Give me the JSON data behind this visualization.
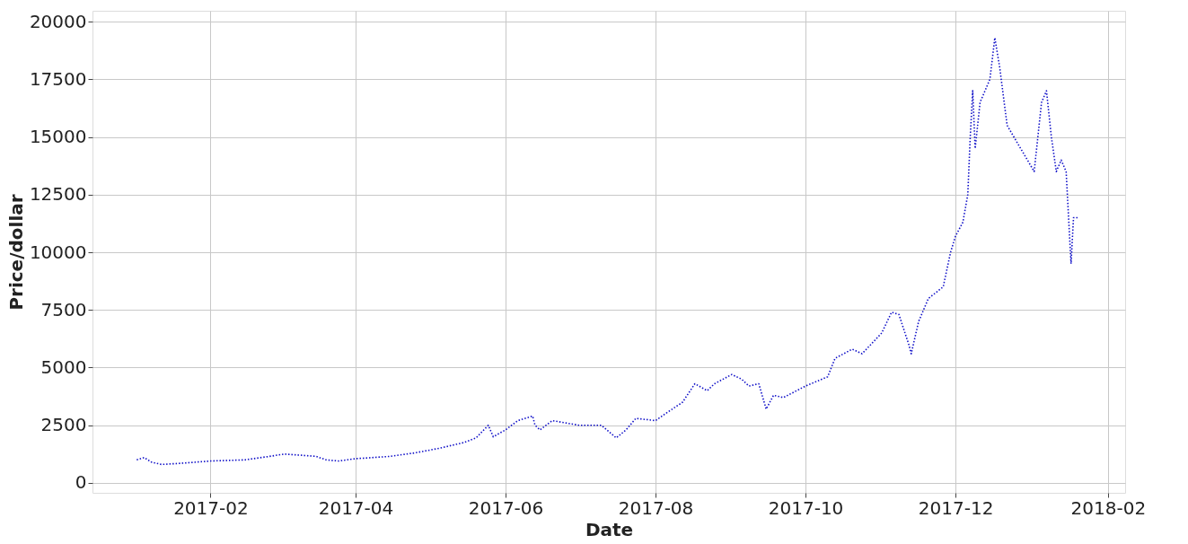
{
  "chart_data": {
    "type": "line",
    "xlabel": "Date",
    "ylabel": "Price/dollar",
    "x": [
      "2017-01-02",
      "2017-01-05",
      "2017-01-08",
      "2017-01-12",
      "2017-01-20",
      "2017-02-01",
      "2017-02-15",
      "2017-02-25",
      "2017-03-03",
      "2017-03-10",
      "2017-03-16",
      "2017-03-20",
      "2017-03-25",
      "2017-04-01",
      "2017-04-15",
      "2017-04-25",
      "2017-05-05",
      "2017-05-15",
      "2017-05-20",
      "2017-05-25",
      "2017-05-27",
      "2017-06-01",
      "2017-06-06",
      "2017-06-12",
      "2017-06-13",
      "2017-06-15",
      "2017-06-20",
      "2017-07-01",
      "2017-07-10",
      "2017-07-16",
      "2017-07-20",
      "2017-07-24",
      "2017-08-01",
      "2017-08-05",
      "2017-08-12",
      "2017-08-17",
      "2017-08-22",
      "2017-08-25",
      "2017-09-01",
      "2017-09-05",
      "2017-09-08",
      "2017-09-12",
      "2017-09-15",
      "2017-09-18",
      "2017-09-22",
      "2017-10-01",
      "2017-10-10",
      "2017-10-13",
      "2017-10-20",
      "2017-10-24",
      "2017-11-01",
      "2017-11-05",
      "2017-11-08",
      "2017-11-12",
      "2017-11-13",
      "2017-11-16",
      "2017-11-20",
      "2017-11-26",
      "2017-11-29",
      "2017-12-01",
      "2017-12-04",
      "2017-12-06",
      "2017-12-07",
      "2017-12-08",
      "2017-12-09",
      "2017-12-11",
      "2017-12-13",
      "2017-12-15",
      "2017-12-17",
      "2017-12-19",
      "2017-12-22",
      "2018-01-02",
      "2018-01-03",
      "2018-01-05",
      "2018-01-07",
      "2018-01-09",
      "2018-01-11",
      "2018-01-13",
      "2018-01-15",
      "2018-01-16",
      "2018-01-17",
      "2018-01-18",
      "2018-01-20"
    ],
    "series": [
      {
        "color": "#1010c8",
        "values": [
          1000,
          1100,
          900,
          800,
          850,
          950,
          1000,
          1150,
          1250,
          1200,
          1150,
          1000,
          950,
          1050,
          1150,
          1300,
          1500,
          1750,
          1950,
          2500,
          2000,
          2300,
          2700,
          2900,
          2500,
          2300,
          2700,
          2500,
          2500,
          1950,
          2300,
          2800,
          2700,
          3000,
          3500,
          4300,
          4000,
          4300,
          4700,
          4500,
          4200,
          4300,
          3200,
          3800,
          3700,
          4200,
          4600,
          5400,
          5800,
          5600,
          6500,
          7400,
          7300,
          6000,
          5600,
          7000,
          8000,
          8500,
          10000,
          10700,
          11300,
          12500,
          15000,
          17000,
          14500,
          16500,
          17000,
          17500,
          19300,
          18000,
          15500,
          13500,
          14500,
          16500,
          17000,
          15000,
          13500,
          14000,
          13500,
          11500,
          9500,
          11500,
          11500
        ]
      }
    ],
    "xlim": [
      "2016-12-15",
      "2018-02-08"
    ],
    "xticks": [
      {
        "value": "2017-02-01",
        "label": "2017-02"
      },
      {
        "value": "2017-04-01",
        "label": "2017-04"
      },
      {
        "value": "2017-06-01",
        "label": "2017-06"
      },
      {
        "value": "2017-08-01",
        "label": "2017-08"
      },
      {
        "value": "2017-10-01",
        "label": "2017-10"
      },
      {
        "value": "2017-12-01",
        "label": "2017-12"
      },
      {
        "value": "2018-02-01",
        "label": "2018-02"
      }
    ],
    "ylim": [
      -430,
      20470
    ],
    "yticks": [
      0,
      2500,
      5000,
      7500,
      10000,
      12500,
      15000,
      17500,
      20000
    ],
    "grid": true,
    "marker": "none",
    "line_style": "dotted"
  }
}
